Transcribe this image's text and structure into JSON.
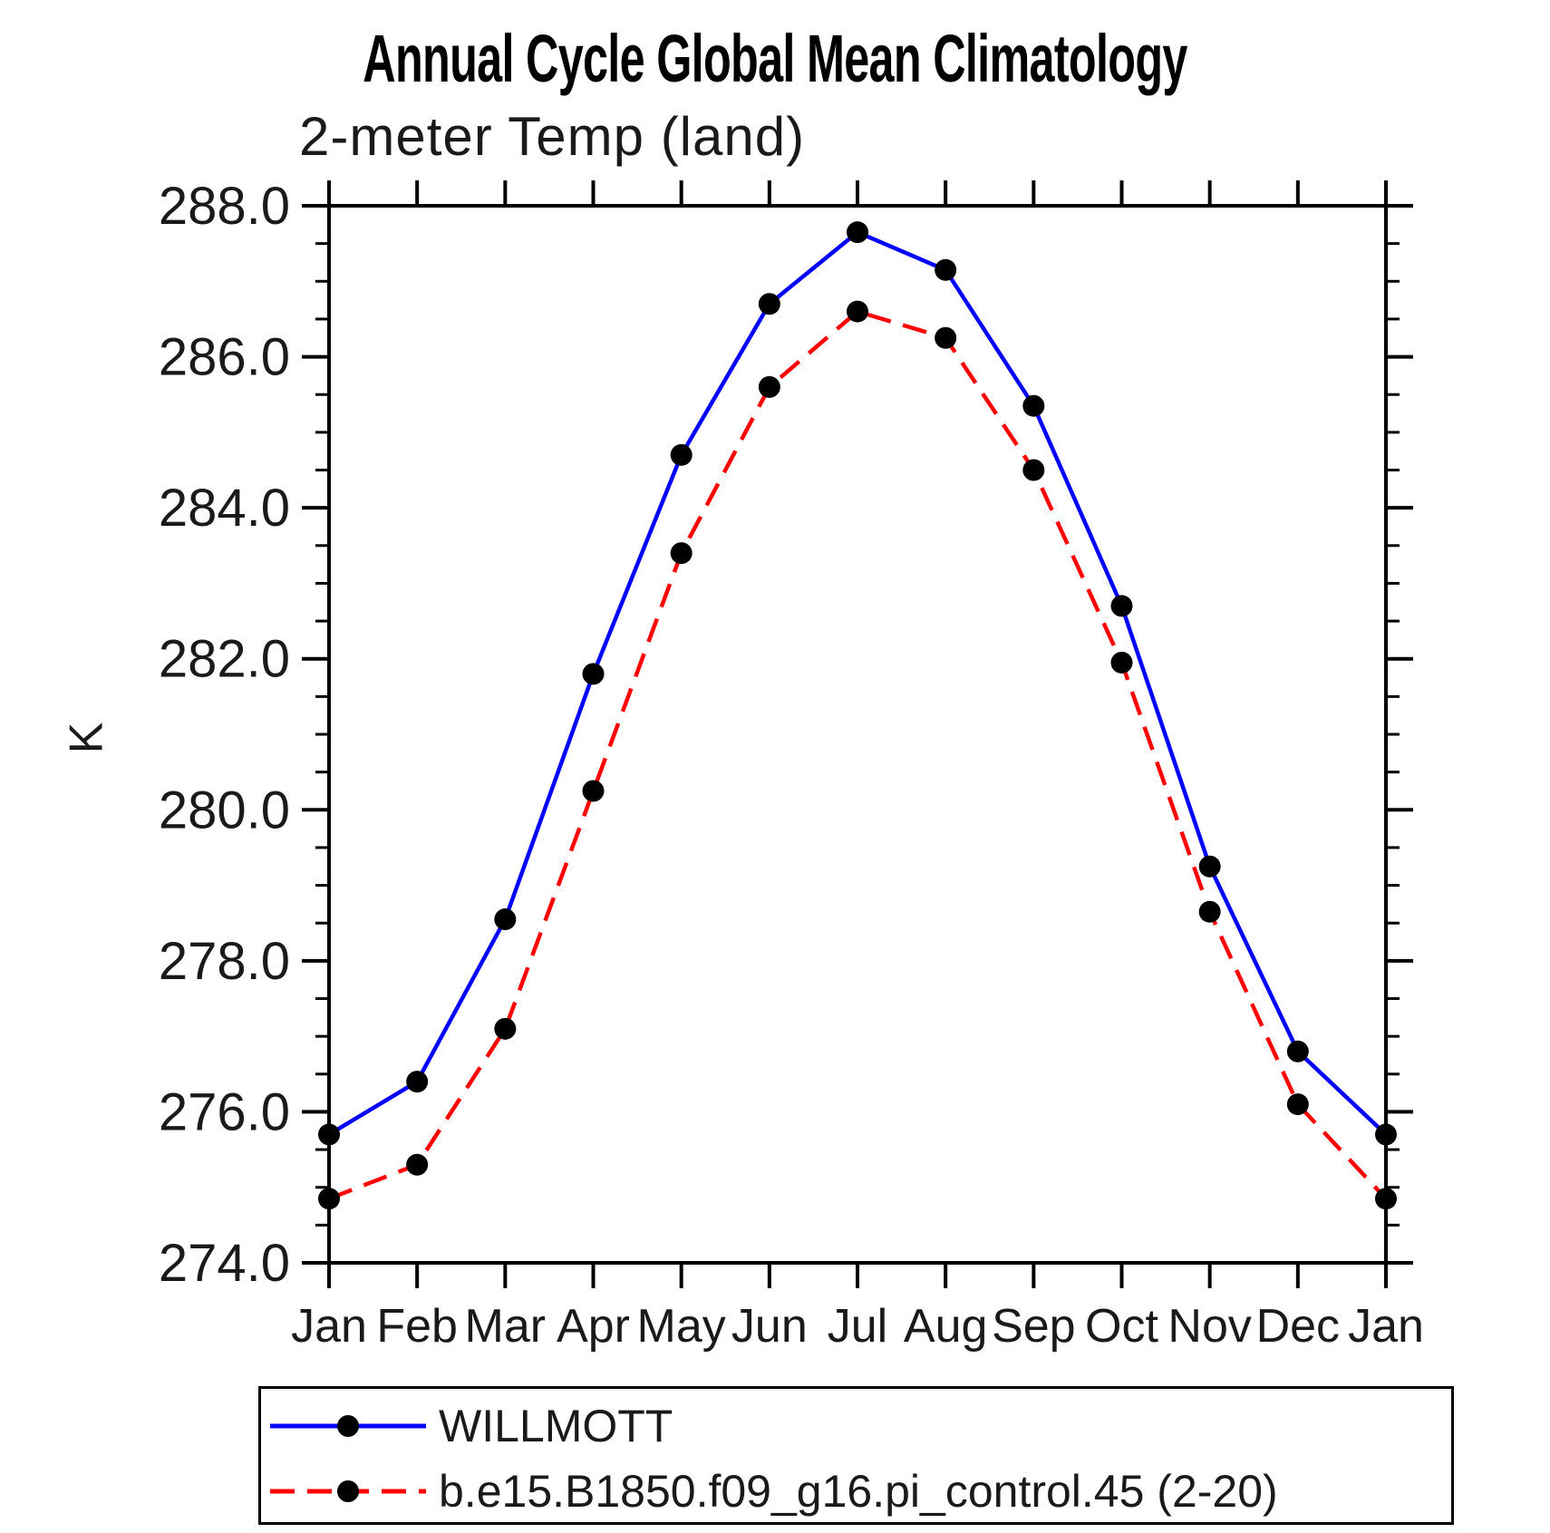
{
  "title": "Annual Cycle Global Mean Climatology",
  "subtitle": "2-meter Temp (land)",
  "chart_data": {
    "type": "line",
    "title": "Annual Cycle Global Mean Climatology",
    "subtitle": "2-meter Temp (land)",
    "xlabel": "",
    "ylabel": "K",
    "categories": [
      "Jan",
      "Feb",
      "Mar",
      "Apr",
      "May",
      "Jun",
      "Jul",
      "Aug",
      "Sep",
      "Oct",
      "Nov",
      "Dec",
      "Jan"
    ],
    "ylim": [
      274.0,
      288.0
    ],
    "ytick_values": [
      288.0,
      286.0,
      284.0,
      282.0,
      280.0,
      278.0,
      276.0,
      274.0
    ],
    "ytick_labels": [
      "288.0",
      "286.0",
      "284.0",
      "282.0",
      "280.0",
      "278.0",
      "276.0",
      "274.0"
    ],
    "yminor_step": 0.5,
    "grid": false,
    "legend_position": "bottom-left-box",
    "series": [
      {
        "name": "WILLMOTT",
        "line_color": "#0000ff",
        "line_style": "solid",
        "marker": "filled-circle",
        "marker_color": "#000000",
        "values": [
          275.7,
          276.4,
          278.55,
          281.8,
          284.7,
          286.7,
          287.65,
          287.15,
          285.35,
          282.7,
          279.25,
          276.8,
          275.7
        ]
      },
      {
        "name": "b.e15.B1850.f09_g16.pi_control.45 (2-20)",
        "line_color": "#ff0000",
        "line_style": "dashed",
        "marker": "filled-circle",
        "marker_color": "#000000",
        "values": [
          274.85,
          275.3,
          277.1,
          280.25,
          283.4,
          285.6,
          286.6,
          286.25,
          284.5,
          281.95,
          278.65,
          276.1,
          274.85
        ]
      }
    ]
  }
}
